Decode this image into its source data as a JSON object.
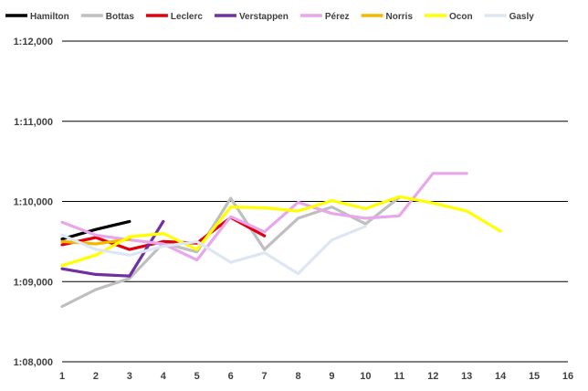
{
  "chart_data": {
    "type": "line",
    "title": "",
    "xlabel": "",
    "ylabel": "",
    "x_ticks": [
      1,
      2,
      3,
      4,
      5,
      6,
      7,
      8,
      9,
      10,
      11,
      12,
      13,
      14,
      15,
      16
    ],
    "xlim": [
      1,
      16
    ],
    "y_ticks": [
      {
        "value": 68,
        "label": "1:08,000"
      },
      {
        "value": 69,
        "label": "1:09,000"
      },
      {
        "value": 70,
        "label": "1:10,000"
      },
      {
        "value": 71,
        "label": "1:11,000"
      },
      {
        "value": 72,
        "label": "1:12,000"
      }
    ],
    "ylim": [
      68,
      72
    ],
    "grid": "horizontal",
    "legend_position": "top",
    "series": [
      {
        "name": "Hamilton",
        "color": "#000000",
        "x": [
          1,
          2,
          3
        ],
        "values": [
          69.53,
          69.65,
          69.75
        ]
      },
      {
        "name": "Bottas",
        "color": "#bfbfbf",
        "x": [
          1,
          2,
          3,
          4,
          5,
          6,
          7,
          8,
          9,
          10,
          11
        ],
        "values": [
          68.69,
          68.9,
          69.04,
          69.48,
          69.37,
          70.04,
          69.4,
          69.79,
          69.93,
          69.72,
          70.05
        ]
      },
      {
        "name": "Leclerc",
        "color": "#e0000e",
        "x": [
          1,
          2,
          3,
          4,
          5,
          6,
          7
        ],
        "values": [
          69.46,
          69.55,
          69.4,
          69.5,
          69.48,
          69.8,
          69.57
        ]
      },
      {
        "name": "Verstappen",
        "color": "#7030a0",
        "x": [
          1,
          2,
          3,
          4
        ],
        "values": [
          69.16,
          69.09,
          69.07,
          69.75
        ]
      },
      {
        "name": "Pérez",
        "color": "#e8a7ec",
        "x": [
          1,
          2,
          3,
          4,
          5,
          6,
          7,
          8,
          9,
          10,
          11,
          12,
          13
        ],
        "values": [
          69.74,
          69.58,
          69.52,
          69.47,
          69.27,
          69.81,
          69.62,
          69.99,
          69.85,
          69.79,
          69.82,
          70.35,
          70.35
        ]
      },
      {
        "name": "Norris",
        "color": "#f5b800",
        "x": [
          1,
          2,
          3
        ],
        "values": [
          69.5,
          69.47,
          69.53
        ]
      },
      {
        "name": "Ocon",
        "color": "#ffff00",
        "x": [
          1,
          2,
          3,
          4,
          5,
          6,
          7,
          8,
          9,
          10,
          11,
          12,
          13,
          14
        ],
        "values": [
          69.2,
          69.33,
          69.56,
          69.6,
          69.4,
          69.93,
          69.92,
          69.88,
          70.01,
          69.91,
          70.06,
          69.98,
          69.88,
          69.63
        ]
      },
      {
        "name": "Gasly",
        "color": "#dde7f3",
        "x": [
          1,
          2,
          3,
          4,
          5,
          6,
          7,
          8,
          9,
          10
        ],
        "values": [
          69.58,
          69.4,
          69.33,
          69.44,
          69.5,
          69.24,
          69.36,
          69.1,
          69.52,
          69.69
        ]
      }
    ]
  }
}
